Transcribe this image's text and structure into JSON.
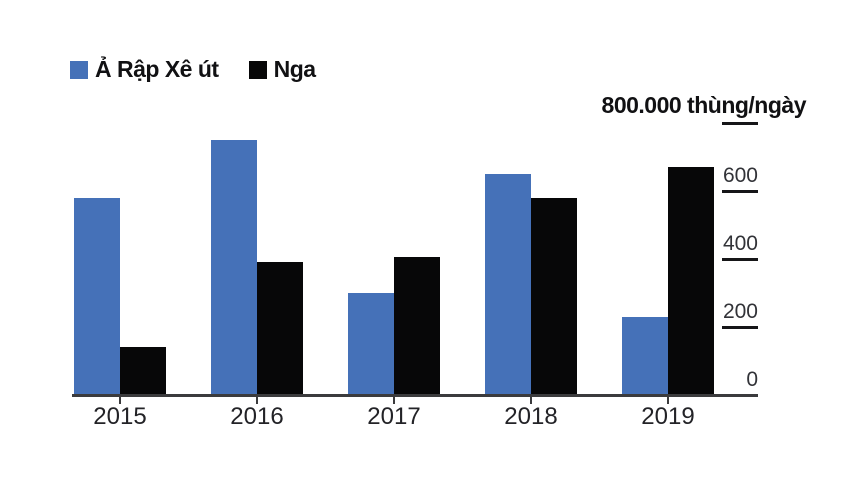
{
  "legend": {
    "items": [
      {
        "label": "Ả Rập Xê út",
        "color": "#4571b8"
      },
      {
        "label": "Nga",
        "color": "#070708"
      }
    ]
  },
  "chart_data": {
    "type": "bar",
    "title": "",
    "unit_label": "800.000 thùng/ngày",
    "categories": [
      "2015",
      "2016",
      "2017",
      "2018",
      "2019"
    ],
    "series": [
      {
        "name": "Ả Rập Xê út",
        "color": "#4571b8",
        "values": [
          580,
          750,
          300,
          650,
          230
        ]
      },
      {
        "name": "Nga",
        "color": "#070708",
        "values": [
          140,
          390,
          405,
          580,
          670
        ]
      }
    ],
    "ylim": [
      0,
      800
    ],
    "y_ticks": [
      0,
      200,
      400,
      600,
      800
    ],
    "y_tick_labels": [
      "600",
      "400",
      "200",
      "0"
    ],
    "grid": false,
    "legend_position": "top-left",
    "y_axis_side": "right",
    "x_axis_label": "",
    "y_axis_label": ""
  }
}
